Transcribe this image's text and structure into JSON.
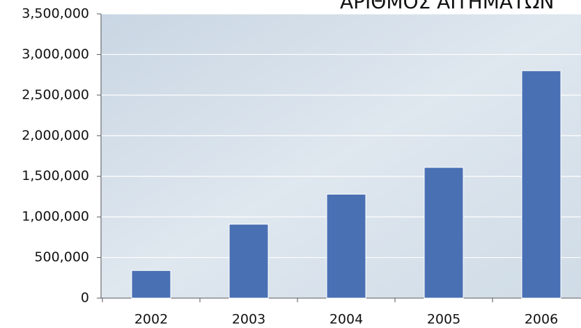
{
  "chart_data": {
    "type": "bar",
    "title": "ΑΡΙΘΜΟΣ ΑΙΤΗΜΑΤΩΝ",
    "categories": [
      "2002",
      "2003",
      "2004",
      "2005",
      "2006"
    ],
    "values": [
      340000,
      910000,
      1280000,
      1610000,
      2800000
    ],
    "color": "#4a70b4",
    "ylim": [
      0,
      3500000
    ],
    "yticks": [
      0,
      {
        "value": 500000,
        "label": "500,000"
      },
      {
        "value": 1000000,
        "label": "1,000,000"
      },
      {
        "value": 1500000,
        "label": "1,500,000"
      },
      {
        "value": 2000000,
        "label": "2,000,000"
      },
      {
        "value": 2500000,
        "label": "2,500,000"
      },
      {
        "value": 3000000,
        "label": "3,000,000"
      },
      {
        "value": 3500000,
        "label": "3,500,000"
      }
    ],
    "grid": true
  }
}
